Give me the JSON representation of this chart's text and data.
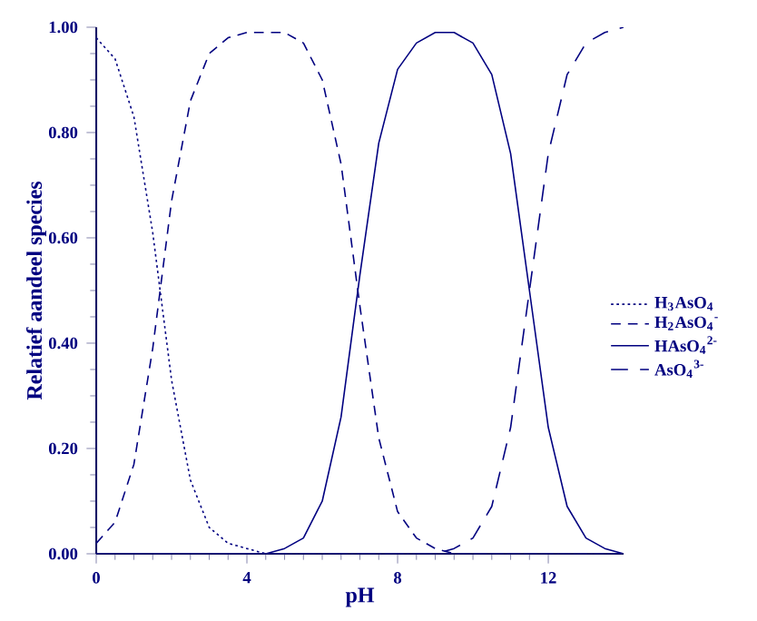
{
  "chart_data": {
    "type": "line",
    "xlabel": "pH",
    "ylabel": "Relatief aandeel species",
    "x": [
      0,
      0.5,
      1,
      1.5,
      2,
      2.5,
      3,
      3.5,
      4,
      4.5,
      5,
      5.5,
      6,
      6.5,
      7,
      7.5,
      8,
      8.5,
      9,
      9.5,
      10,
      10.5,
      11,
      11.5,
      12,
      12.5,
      13,
      13.5,
      14
    ],
    "series": [
      {
        "name": "H$_{3}$AsO$_{4}$",
        "color": "#000080",
        "line_style": "dotted",
        "values": [
          0.98,
          0.94,
          0.83,
          0.61,
          0.33,
          0.14,
          0.05,
          0.02,
          0.01,
          0,
          0,
          0,
          0,
          0,
          0,
          0,
          0,
          0,
          0,
          0,
          0,
          0,
          0,
          0,
          0,
          0,
          0,
          0,
          0
        ]
      },
      {
        "name": "H$_{2}$AsO$_{4}$$^{-}$",
        "color": "#000080",
        "line_style": "dashed",
        "values": [
          0.02,
          0.06,
          0.17,
          0.39,
          0.67,
          0.86,
          0.95,
          0.98,
          0.99,
          0.99,
          0.99,
          0.97,
          0.9,
          0.74,
          0.47,
          0.22,
          0.08,
          0.03,
          0.01,
          0,
          0,
          0,
          0,
          0,
          0,
          0,
          0,
          0,
          0
        ]
      },
      {
        "name": "HAsO$_{4}$$^{2-}$",
        "color": "#000080",
        "line_style": "solid",
        "values": [
          0,
          0,
          0,
          0,
          0,
          0,
          0,
          0,
          0,
          0,
          0.01,
          0.03,
          0.1,
          0.26,
          0.53,
          0.78,
          0.92,
          0.97,
          0.99,
          0.99,
          0.97,
          0.91,
          0.76,
          0.5,
          0.24,
          0.09,
          0.03,
          0.01,
          0
        ]
      },
      {
        "name": "AsO$_{4}$$^{3-}$",
        "color": "#000080",
        "line_style": "dashed",
        "values": [
          0,
          0,
          0,
          0,
          0,
          0,
          0,
          0,
          0,
          0,
          0,
          0,
          0,
          0,
          0,
          0,
          0,
          0,
          0,
          0.01,
          0.03,
          0.09,
          0.24,
          0.5,
          0.76,
          0.91,
          0.97,
          0.99,
          1.0
        ]
      }
    ],
    "xlim": [
      0,
      14
    ],
    "ylim": [
      0,
      1
    ],
    "xticks": [
      0,
      4,
      8,
      12
    ],
    "yticks": [
      {
        "value": 0,
        "label": "0.00"
      },
      {
        "value": 0.2,
        "label": "0.20"
      },
      {
        "value": 0.4,
        "label": "0.40"
      },
      {
        "value": 0.6,
        "label": "0.60"
      },
      {
        "value": 0.8,
        "label": "0.80"
      },
      {
        "value": 1,
        "label": "1.00"
      }
    ],
    "legend": "right",
    "grid": false,
    "marker": "none"
  }
}
